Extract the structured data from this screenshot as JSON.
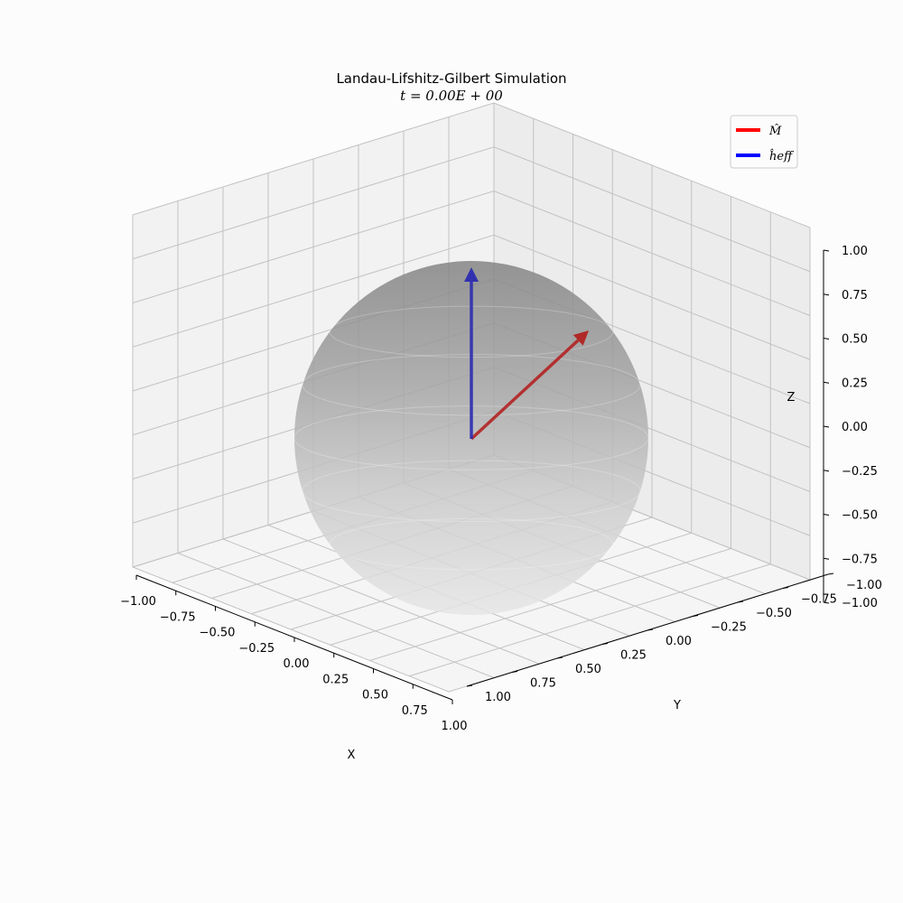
{
  "chart_data": {
    "type": "3d-vector-sphere",
    "title": "Landau-Lifshitz-Gilbert Simulation",
    "subtitle": "t = 0.00E + 00",
    "xlabel": "X",
    "ylabel": "Y",
    "zlabel": "Z",
    "xlim": [
      -1.0,
      1.0
    ],
    "ylim": [
      -1.0,
      1.0
    ],
    "zlim": [
      -1.0,
      1.0
    ],
    "x_ticks": [
      "−1.00",
      "−0.75",
      "−0.50",
      "−0.25",
      "0.00",
      "0.25",
      "0.50",
      "0.75",
      "1.00"
    ],
    "y_ticks": [
      "−1.00",
      "−0.75",
      "−0.50",
      "−0.25",
      "0.00",
      "0.25",
      "0.50",
      "0.75",
      "1.00"
    ],
    "z_ticks": [
      "−1.00",
      "−0.75",
      "−0.50",
      "−0.25",
      "0.00",
      "0.25",
      "0.50",
      "0.75",
      "1.00"
    ],
    "grid": true,
    "legend_position": "top-right",
    "sphere": {
      "radius": 1.0,
      "color": "#9a9a9a"
    },
    "vectors": [
      {
        "name": "M̂",
        "x": 0.56,
        "y": 0.56,
        "z": 0.6,
        "color": "#b22222",
        "legend_color": "#ff0000"
      },
      {
        "name": "ĥeff",
        "x": 0.0,
        "y": 0.0,
        "z": 1.0,
        "color": "#2b2bb0",
        "legend_color": "#0000ff"
      }
    ]
  }
}
